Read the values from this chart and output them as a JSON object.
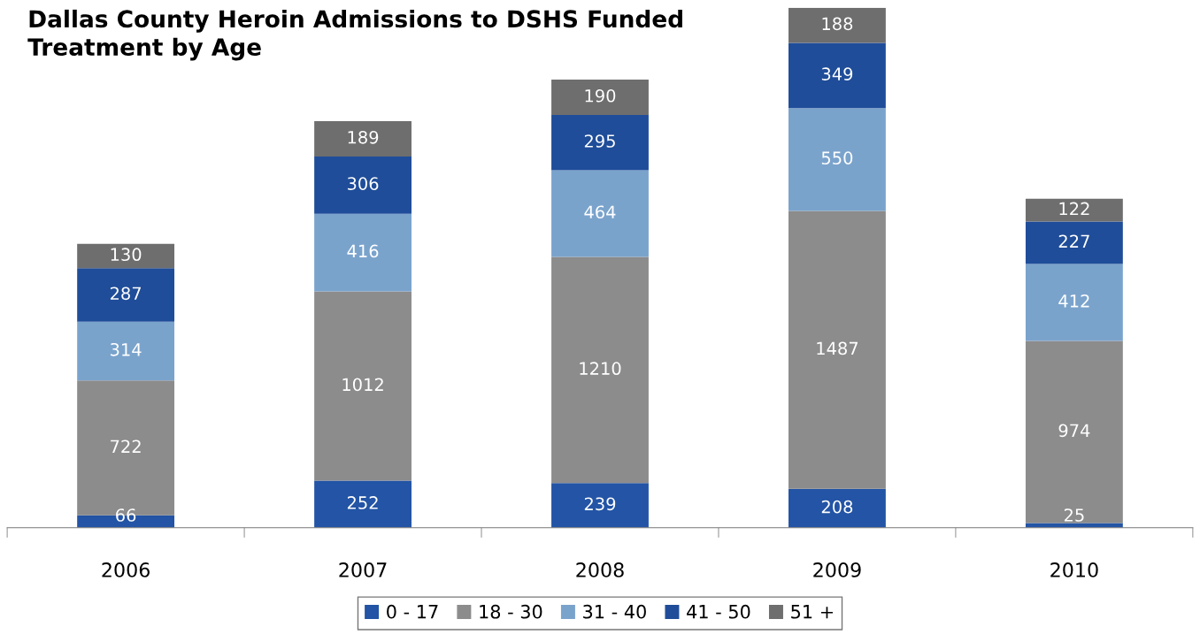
{
  "chart_data": {
    "type": "bar",
    "title": "Dallas County Heroin Admissions to DSHS Funded\nTreatment by Age",
    "categories": [
      "2006",
      "2007",
      "2008",
      "2009",
      "2010"
    ],
    "stacked": true,
    "data_labels": true,
    "legend": "bottom",
    "grid": false,
    "series": [
      {
        "name": "0 - 17",
        "color": "#2354a5",
        "values": [
          66,
          252,
          239,
          208,
          25
        ]
      },
      {
        "name": "18 - 30",
        "color": "#8c8c8c",
        "values": [
          722,
          1012,
          1210,
          1487,
          974
        ]
      },
      {
        "name": "31 - 40",
        "color": "#7aa3cc",
        "values": [
          314,
          416,
          464,
          550,
          412
        ]
      },
      {
        "name": "41 - 50",
        "color": "#1f4d99",
        "values": [
          287,
          306,
          295,
          349,
          227
        ]
      },
      {
        "name": "51 +",
        "color": "#6e6e6e",
        "values": [
          130,
          189,
          190,
          188,
          122
        ]
      }
    ]
  }
}
